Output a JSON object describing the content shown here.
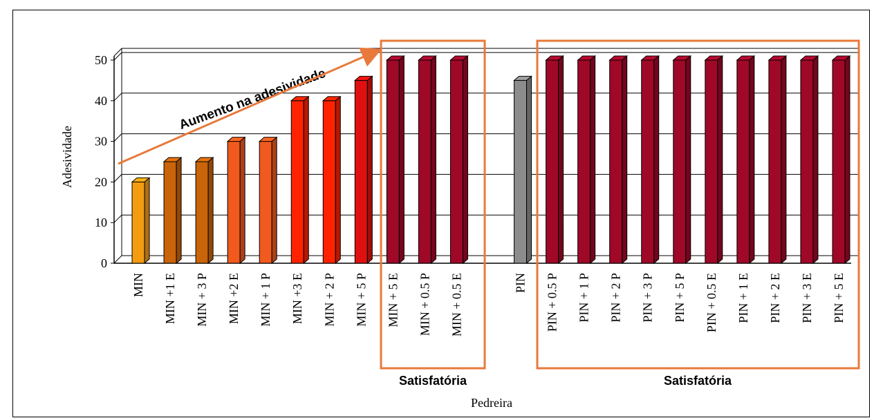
{
  "chart_data": {
    "type": "bar",
    "xlabel": "Pedreira",
    "ylabel": "Adesividade",
    "ylim": [
      0,
      50
    ],
    "yticks": [
      "0",
      "10",
      "20",
      "30",
      "40",
      "50"
    ],
    "grid": true,
    "categories": [
      "MIN",
      "MIN +1 E",
      "MIN + 3 P",
      "MIN +2 E",
      "MIN + 1 P",
      "MIN +3 E",
      "MIN + 2 P",
      "MIN + 5 P",
      "MIN + 5 E",
      "MIN + 0.5 P",
      "MIN + 0.5 E",
      "",
      "PIN",
      "PIN + 0.5 P",
      "PIN + 1 P",
      "PIN + 2 P",
      "PIN + 3 P",
      "PIN + 5 P",
      "PIN + 0.5 E",
      "PIN + 1 E",
      "PIN + 2 E",
      "PIN + 3 E",
      "PIN + 5 E"
    ],
    "values": [
      20,
      25,
      25,
      30,
      30,
      40,
      40,
      45,
      50,
      50,
      50,
      null,
      45,
      50,
      50,
      50,
      50,
      50,
      50,
      50,
      50,
      50,
      50
    ],
    "bar_colors": [
      "#f39c12",
      "#c9640a",
      "#c9640a",
      "#f05a1e",
      "#f05a1e",
      "#ff2200",
      "#ff2200",
      "#e01010",
      "#a00828",
      "#a00828",
      "#a00828",
      null,
      "#8c8c8c",
      "#a00828",
      "#a00828",
      "#a00828",
      "#a00828",
      "#a00828",
      "#a00828",
      "#a00828",
      "#a00828",
      "#a00828",
      "#a00828"
    ],
    "annotations": {
      "arrow_text": "Aumento na adesividade",
      "box_label_left": "Satisfatória",
      "box_label_right": "Satisfatória"
    },
    "annotation_color": "#e8793a"
  }
}
